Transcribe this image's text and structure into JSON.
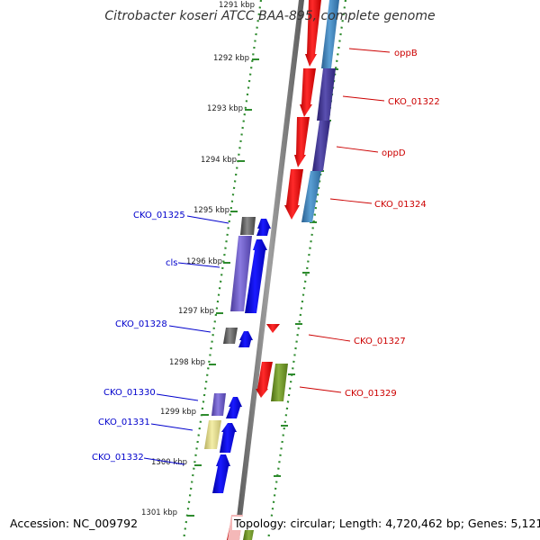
{
  "title": "Citrobacter koseri ATCC BAA-895, complete genome",
  "footer": {
    "accession": "Accession: NC_009792",
    "summary": "Topology: circular; Length: 4,720,462 bp; Genes: 5,121"
  },
  "ticks": [
    "1291 kbp",
    "1292 kbp",
    "1293 kbp",
    "1294 kbp",
    "1295 kbp",
    "1296 kbp",
    "1297 kbp",
    "1298 kbp",
    "1299 kbp",
    "1300 kbp",
    "1301 kbp"
  ],
  "labels_right": [
    "oppB",
    "CKO_01322",
    "oppD",
    "CKO_01324",
    "CKO_01327",
    "CKO_01329"
  ],
  "labels_left": [
    "CKO_01325",
    "cls",
    "CKO_01328",
    "CKO_01330",
    "CKO_01331",
    "CKO_01332"
  ],
  "colors": {
    "forward_strand": "#ff0000",
    "reverse_strand": "#0000ff",
    "backbone": "#808080",
    "tick_green": "#2e8b2e",
    "label_right": "#cc0000",
    "label_left": "#0000cc"
  }
}
